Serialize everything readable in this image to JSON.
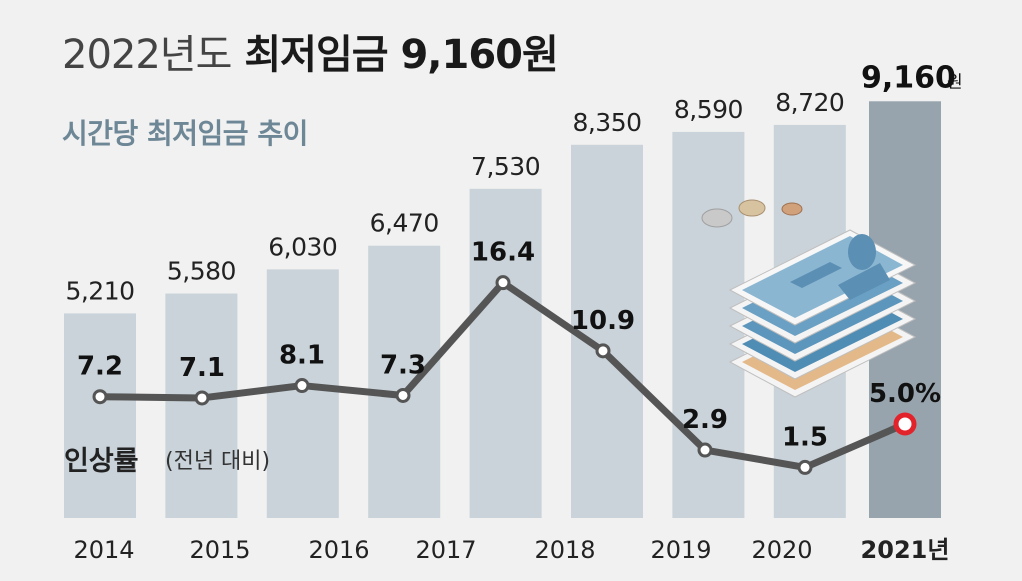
{
  "title": {
    "year_prefix": "2022년도",
    "main": "최저임금 9,160원"
  },
  "subtitle": "시간당 최저임금 추이",
  "colors": {
    "background": "#f1f1f1",
    "bar": "#c9d3d9",
    "bar_highlight": "#97a4ad",
    "line": "#555555",
    "marker_highlight": "#e3232b",
    "label": "#222222"
  },
  "chart_data": {
    "type": "bar",
    "categories": [
      "2014",
      "2015",
      "2016",
      "2017",
      "2018",
      "2019",
      "2020",
      "2021년"
    ],
    "values": [
      5210,
      5580,
      6030,
      6470,
      7530,
      8350,
      8590,
      8720
    ],
    "value_labels": [
      "5,210",
      "5,580",
      "6,030",
      "6,470",
      "7,530",
      "8,350",
      "8,590",
      "8,720"
    ],
    "highlight": {
      "value": 9160,
      "label": "9,160",
      "unit": "원"
    },
    "growth_series": {
      "name": "인상률",
      "name_note": "(전년 대비)",
      "values": [
        7.2,
        7.1,
        8.1,
        7.3,
        16.4,
        10.9,
        2.9,
        1.5,
        5.0
      ],
      "labels": [
        "7.2",
        "7.1",
        "8.1",
        "7.3",
        "16.4",
        "10.9",
        "2.9",
        "1.5",
        "5.0%"
      ]
    },
    "title": "시간당 최저임금 추이",
    "xlabel": "",
    "ylabel": "",
    "grid": false,
    "legend": "none"
  },
  "illustration": {
    "name": "money-illustration",
    "icon": "banknotes-and-coins"
  }
}
